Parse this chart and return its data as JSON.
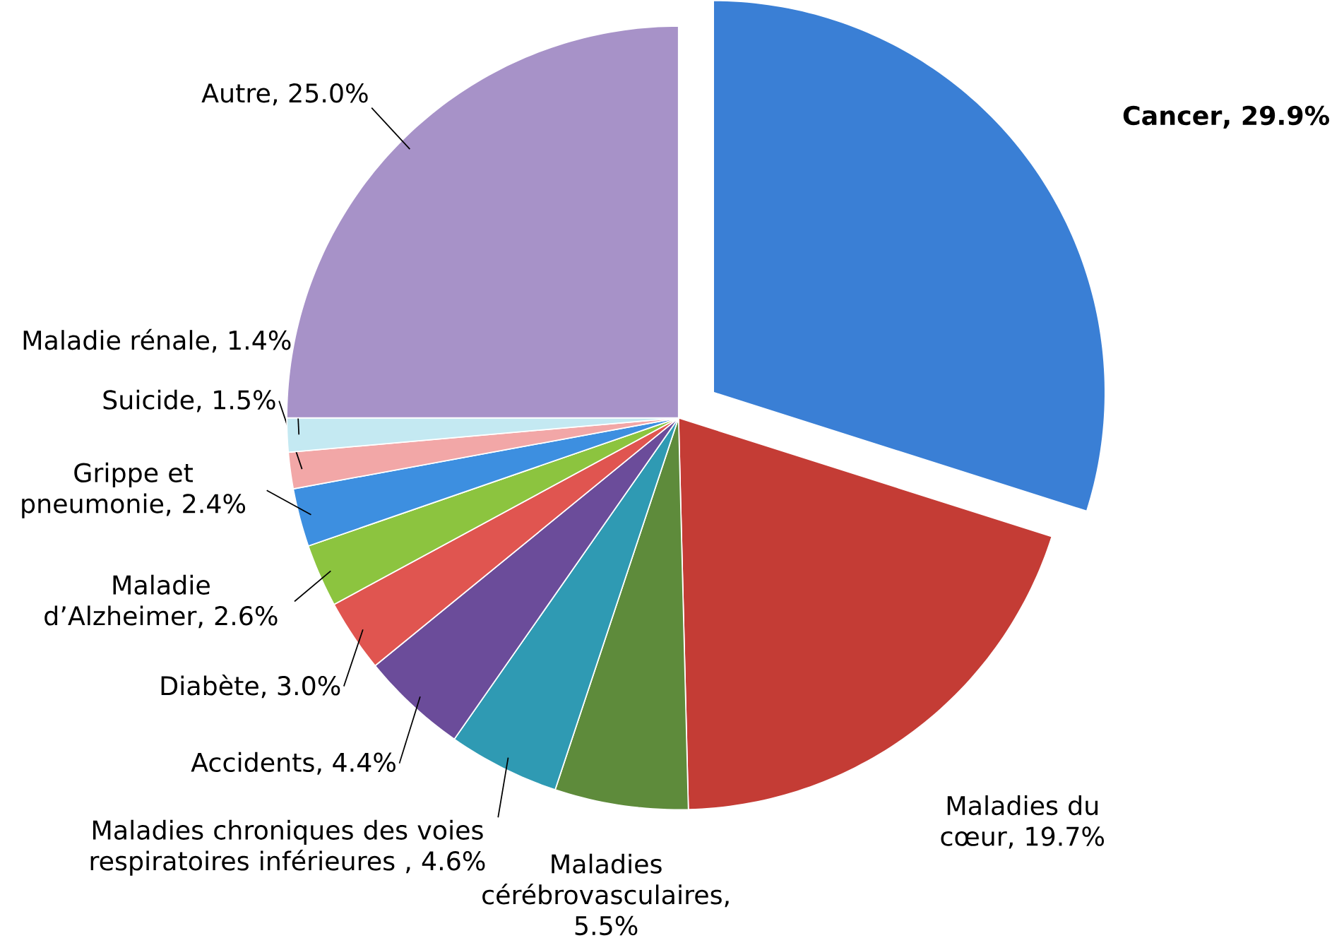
{
  "chart_data": {
    "type": "pie",
    "categories": [
      "Cancer",
      "Maladies du cœur",
      "Maladies cérébrovasculaires",
      "Maladies chroniques des voies respiratoires inférieures",
      "Accidents",
      "Diabète",
      "Maladie d’Alzheimer",
      "Grippe et pneumonie",
      "Suicide",
      "Maladie rénale",
      "Autre"
    ],
    "values": [
      29.9,
      19.7,
      5.5,
      4.6,
      4.4,
      3.0,
      2.6,
      2.4,
      1.5,
      1.4,
      25.0
    ],
    "value_labels": [
      ", 29.9%",
      ", 19.7%",
      ", 5.5%",
      " , 4.6%",
      ", 4.4%",
      ", 3.0%",
      ", 2.6%",
      ", 2.4%",
      ", 1.5%",
      ", 1.4%",
      ", 25.0%"
    ],
    "colors": [
      "#3a7fd5",
      "#c43c35",
      "#5e8b3b",
      "#2f9ab3",
      "#6b4c9a",
      "#e05550",
      "#8cc43f",
      "#3d8fe0",
      "#f2a7a7",
      "#c4e9f2",
      "#a792c8"
    ]
  }
}
